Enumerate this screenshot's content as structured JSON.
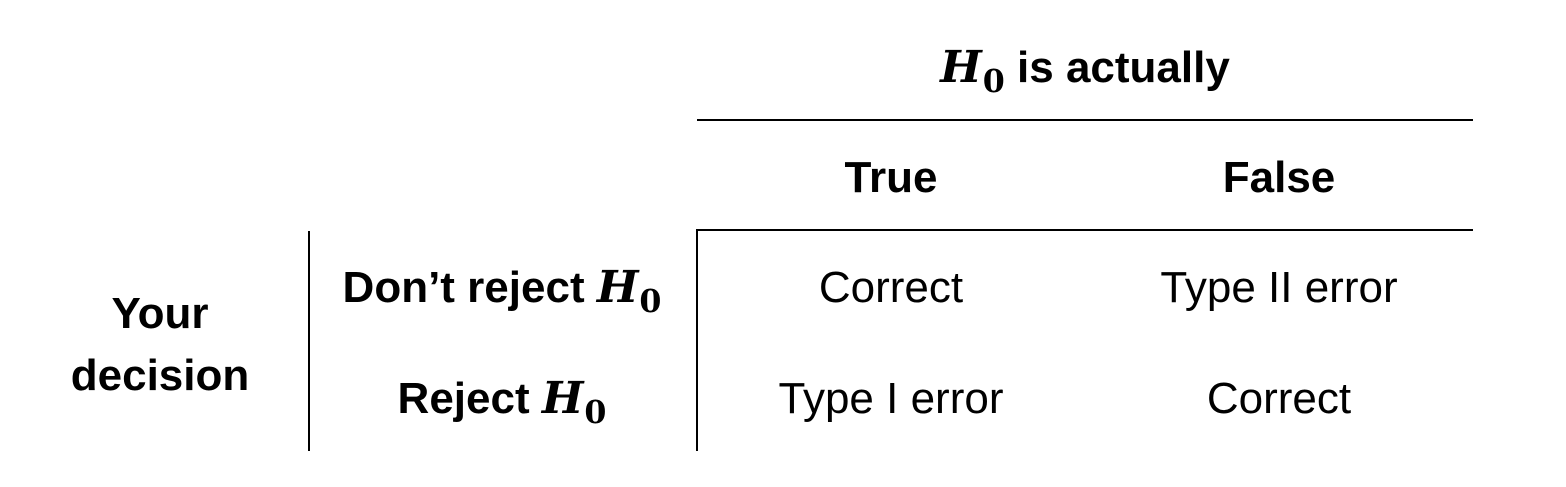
{
  "column_header": {
    "symbol": "H",
    "subscript": "0",
    "suffix": " is actually"
  },
  "columns": {
    "true_label": "True",
    "false_label": "False"
  },
  "row_header": {
    "line1": "Your",
    "line2": "decision"
  },
  "rows": {
    "dont_reject": {
      "prefix": "Don’t reject ",
      "symbol": "H",
      "subscript": "0"
    },
    "reject": {
      "prefix": "Reject ",
      "symbol": "H",
      "subscript": "0"
    }
  },
  "cells": {
    "dont_reject_true": "Correct",
    "dont_reject_false": "Type II error",
    "reject_true": "Type I error",
    "reject_false": "Correct"
  }
}
